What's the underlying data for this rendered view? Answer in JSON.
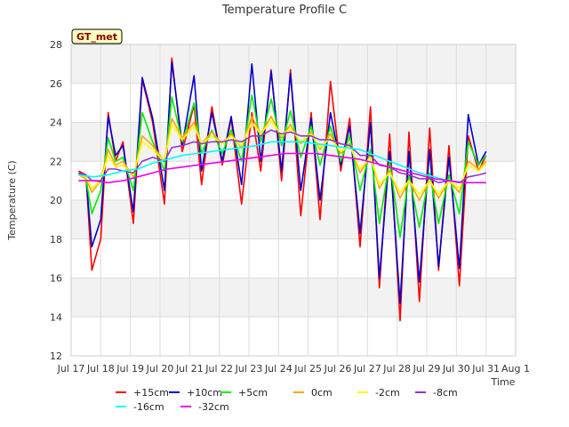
{
  "chart_data": {
    "type": "line",
    "title": "Temperature Profile C",
    "xlabel": "Time",
    "ylabel": "Temperature (C)",
    "badge": "GT_met",
    "xlim": [
      17,
      32
    ],
    "ylim": [
      12,
      28
    ],
    "x_ticks": [
      {
        "x": 17,
        "label": "Jul 17"
      },
      {
        "x": 18,
        "label": "Jul 18"
      },
      {
        "x": 19,
        "label": "Jul 19"
      },
      {
        "x": 20,
        "label": "Jul 20"
      },
      {
        "x": 21,
        "label": "Jul 21"
      },
      {
        "x": 22,
        "label": "Jul 22"
      },
      {
        "x": 23,
        "label": "Jul 23"
      },
      {
        "x": 24,
        "label": "Jul 24"
      },
      {
        "x": 25,
        "label": "Jul 25"
      },
      {
        "x": 26,
        "label": "Jul 26"
      },
      {
        "x": 27,
        "label": "Jul 27"
      },
      {
        "x": 28,
        "label": "Jul 28"
      },
      {
        "x": 29,
        "label": "Jul 29"
      },
      {
        "x": 30,
        "label": "Jul 30"
      },
      {
        "x": 31,
        "label": "Jul 31"
      },
      {
        "x": 32,
        "label": "Aug 1"
      }
    ],
    "y_ticks": [
      12,
      14,
      16,
      18,
      20,
      22,
      24,
      26,
      28
    ],
    "grid": true,
    "legend_position": "bottom",
    "series": [
      {
        "name": "+15cm",
        "color": "#ff0000",
        "x": [
          17.25,
          17.5,
          17.7,
          18.0,
          18.25,
          18.5,
          18.75,
          19.1,
          19.4,
          19.75,
          20.15,
          20.4,
          20.75,
          21.15,
          21.4,
          21.75,
          22.1,
          22.4,
          22.75,
          23.1,
          23.4,
          23.75,
          24.1,
          24.4,
          24.75,
          25.1,
          25.4,
          25.75,
          26.1,
          26.4,
          26.75,
          27.1,
          27.4,
          27.75,
          28.1,
          28.4,
          28.75,
          29.1,
          29.4,
          29.75,
          30.1,
          30.4,
          30.75,
          31.0
        ],
        "y": [
          21.5,
          21.3,
          16.4,
          18.0,
          24.5,
          22.0,
          23.0,
          18.8,
          26.2,
          24.0,
          19.8,
          27.3,
          22.5,
          24.9,
          20.8,
          24.8,
          21.8,
          24.2,
          19.8,
          24.5,
          21.5,
          26.7,
          21.0,
          26.7,
          19.2,
          24.5,
          19.0,
          26.1,
          21.5,
          24.2,
          17.6,
          24.8,
          15.5,
          23.4,
          13.8,
          23.5,
          14.8,
          23.7,
          16.4,
          22.8,
          15.6,
          23.3,
          21.5,
          22.3
        ]
      },
      {
        "name": "+10cm",
        "color": "#0000cc",
        "x": [
          17.25,
          17.5,
          17.7,
          18.0,
          18.25,
          18.5,
          18.75,
          19.1,
          19.4,
          19.75,
          20.15,
          20.4,
          20.75,
          21.15,
          21.4,
          21.75,
          22.1,
          22.4,
          22.75,
          23.1,
          23.4,
          23.75,
          24.1,
          24.4,
          24.75,
          25.1,
          25.4,
          25.75,
          26.1,
          26.4,
          26.75,
          27.1,
          27.4,
          27.75,
          28.1,
          28.4,
          28.75,
          29.1,
          29.4,
          29.75,
          30.1,
          30.4,
          30.75,
          31.0
        ],
        "y": [
          21.4,
          21.2,
          17.6,
          19.0,
          24.3,
          22.3,
          22.8,
          19.4,
          26.3,
          24.2,
          20.5,
          27.1,
          22.8,
          26.4,
          21.5,
          24.5,
          22.0,
          24.3,
          20.8,
          27.0,
          22.0,
          26.6,
          21.5,
          26.5,
          20.5,
          24.2,
          20.0,
          24.5,
          21.8,
          23.8,
          18.3,
          24.0,
          16.0,
          22.5,
          14.7,
          22.5,
          15.8,
          22.6,
          16.6,
          22.2,
          16.5,
          24.4,
          21.8,
          22.5
        ]
      },
      {
        "name": "+5cm",
        "color": "#00ee00",
        "x": [
          17.25,
          17.5,
          17.7,
          18.0,
          18.25,
          18.5,
          18.75,
          19.1,
          19.4,
          19.75,
          20.15,
          20.4,
          20.75,
          21.15,
          21.4,
          21.75,
          22.1,
          22.4,
          22.75,
          23.1,
          23.4,
          23.75,
          24.1,
          24.4,
          24.75,
          25.1,
          25.4,
          25.75,
          26.1,
          26.4,
          26.75,
          27.1,
          27.4,
          27.75,
          28.1,
          28.4,
          28.75,
          29.1,
          29.4,
          29.75,
          30.1,
          30.4,
          30.75,
          31.0
        ],
        "y": [
          21.3,
          21.1,
          19.3,
          20.5,
          23.2,
          22.0,
          22.2,
          20.5,
          24.5,
          23.0,
          21.5,
          25.3,
          23.0,
          25.0,
          22.4,
          23.6,
          22.4,
          23.6,
          22.0,
          25.4,
          23.0,
          25.2,
          22.8,
          24.6,
          22.2,
          23.8,
          21.8,
          23.8,
          22.0,
          23.3,
          20.5,
          22.6,
          18.8,
          22.0,
          18.1,
          21.3,
          18.6,
          21.4,
          18.8,
          21.3,
          19.3,
          23.0,
          21.8,
          22.3
        ]
      },
      {
        "name": "0cm",
        "color": "#ffa500",
        "x": [
          17.25,
          17.5,
          17.7,
          18.0,
          18.25,
          18.5,
          18.75,
          19.1,
          19.4,
          19.75,
          20.15,
          20.4,
          20.75,
          21.15,
          21.4,
          21.75,
          22.1,
          22.4,
          22.75,
          23.1,
          23.4,
          23.75,
          24.1,
          24.4,
          24.75,
          25.1,
          25.4,
          25.75,
          26.1,
          26.4,
          26.75,
          27.1,
          27.4,
          27.75,
          28.1,
          28.4,
          28.75,
          29.1,
          29.4,
          29.75,
          30.1,
          30.4,
          30.75,
          31.0
        ],
        "y": [
          21.3,
          21.1,
          20.4,
          21.0,
          22.6,
          21.8,
          22.0,
          21.2,
          23.3,
          22.8,
          22.0,
          24.2,
          23.2,
          24.0,
          22.9,
          23.5,
          22.9,
          23.4,
          22.7,
          24.3,
          23.4,
          24.3,
          23.2,
          23.9,
          22.9,
          23.5,
          22.6,
          23.4,
          22.4,
          22.9,
          21.4,
          22.3,
          20.6,
          21.5,
          20.1,
          21.0,
          20.0,
          21.0,
          20.1,
          21.0,
          20.4,
          22.0,
          21.6,
          22.0
        ]
      },
      {
        "name": "-2cm",
        "color": "#ffff00",
        "x": [
          17.25,
          17.5,
          17.7,
          18.0,
          18.25,
          18.5,
          18.75,
          19.1,
          19.4,
          19.75,
          20.15,
          20.4,
          20.75,
          21.15,
          21.4,
          21.75,
          22.1,
          22.4,
          22.75,
          23.1,
          23.4,
          23.75,
          24.1,
          24.4,
          24.75,
          25.1,
          25.4,
          25.75,
          26.1,
          26.4,
          26.75,
          27.1,
          27.4,
          27.75,
          28.1,
          28.4,
          28.75,
          29.1,
          29.4,
          29.75,
          30.1,
          30.4,
          30.75,
          31.0
        ],
        "y": [
          21.3,
          21.2,
          20.6,
          21.0,
          22.3,
          21.7,
          21.8,
          21.3,
          23.0,
          22.6,
          22.0,
          23.9,
          23.1,
          23.8,
          22.9,
          23.3,
          22.9,
          23.3,
          22.8,
          24.0,
          23.4,
          24.1,
          23.3,
          23.7,
          23.0,
          23.4,
          22.7,
          23.2,
          22.5,
          22.8,
          21.6,
          22.2,
          20.8,
          21.4,
          20.4,
          21.0,
          20.3,
          21.0,
          20.3,
          21.0,
          20.6,
          21.8,
          21.5,
          21.9
        ]
      },
      {
        "name": "-8cm",
        "color": "#9932cc",
        "x": [
          17.25,
          17.5,
          17.7,
          18.0,
          18.25,
          18.5,
          18.75,
          19.1,
          19.4,
          19.75,
          20.15,
          20.4,
          20.75,
          21.15,
          21.4,
          21.75,
          22.1,
          22.4,
          22.75,
          23.1,
          23.4,
          23.75,
          24.1,
          24.4,
          24.75,
          25.1,
          25.4,
          25.75,
          26.1,
          26.4,
          26.75,
          27.1,
          27.4,
          27.75,
          28.1,
          28.4,
          28.75,
          29.1,
          29.4,
          29.75,
          30.1,
          30.4,
          30.75,
          31.0
        ],
        "y": [
          21.4,
          21.3,
          21.0,
          21.0,
          21.6,
          21.6,
          21.5,
          21.4,
          22.0,
          22.2,
          22.0,
          22.7,
          22.8,
          23.0,
          22.9,
          23.0,
          23.0,
          23.1,
          23.0,
          23.3,
          23.3,
          23.6,
          23.4,
          23.5,
          23.3,
          23.3,
          23.1,
          23.1,
          22.9,
          22.8,
          22.3,
          22.3,
          21.8,
          21.7,
          21.4,
          21.3,
          21.1,
          21.1,
          20.9,
          21.0,
          20.9,
          21.2,
          21.3,
          21.4
        ]
      },
      {
        "name": "-16cm",
        "color": "#00ffff",
        "x": [
          17.25,
          17.75,
          18.25,
          18.75,
          19.25,
          19.75,
          20.25,
          20.75,
          21.25,
          21.75,
          22.25,
          22.75,
          23.25,
          23.75,
          24.25,
          24.75,
          25.25,
          25.75,
          26.25,
          26.75,
          27.25,
          27.75,
          28.25,
          28.75,
          29.25,
          29.75,
          30.25,
          30.75,
          31.0
        ],
        "y": [
          21.3,
          21.2,
          21.3,
          21.5,
          21.6,
          21.9,
          22.1,
          22.3,
          22.4,
          22.5,
          22.6,
          22.7,
          22.8,
          23.0,
          23.0,
          23.0,
          22.9,
          22.8,
          22.7,
          22.6,
          22.3,
          22.0,
          21.7,
          21.4,
          21.2,
          21.0,
          20.9,
          20.9,
          20.9
        ]
      },
      {
        "name": "-32cm",
        "color": "#ee00ee",
        "x": [
          17.25,
          17.75,
          18.25,
          18.75,
          19.25,
          19.75,
          20.25,
          20.75,
          21.25,
          21.75,
          22.25,
          22.75,
          23.25,
          23.75,
          24.25,
          24.75,
          25.25,
          25.75,
          26.25,
          26.75,
          27.25,
          27.75,
          28.25,
          28.75,
          29.25,
          29.75,
          30.25,
          30.75,
          31.0
        ],
        "y": [
          21.0,
          21.0,
          20.9,
          21.0,
          21.2,
          21.4,
          21.6,
          21.7,
          21.8,
          21.9,
          22.0,
          22.1,
          22.2,
          22.3,
          22.4,
          22.4,
          22.4,
          22.3,
          22.2,
          22.1,
          21.9,
          21.7,
          21.5,
          21.3,
          21.1,
          21.0,
          20.9,
          20.9,
          20.9
        ]
      }
    ]
  }
}
